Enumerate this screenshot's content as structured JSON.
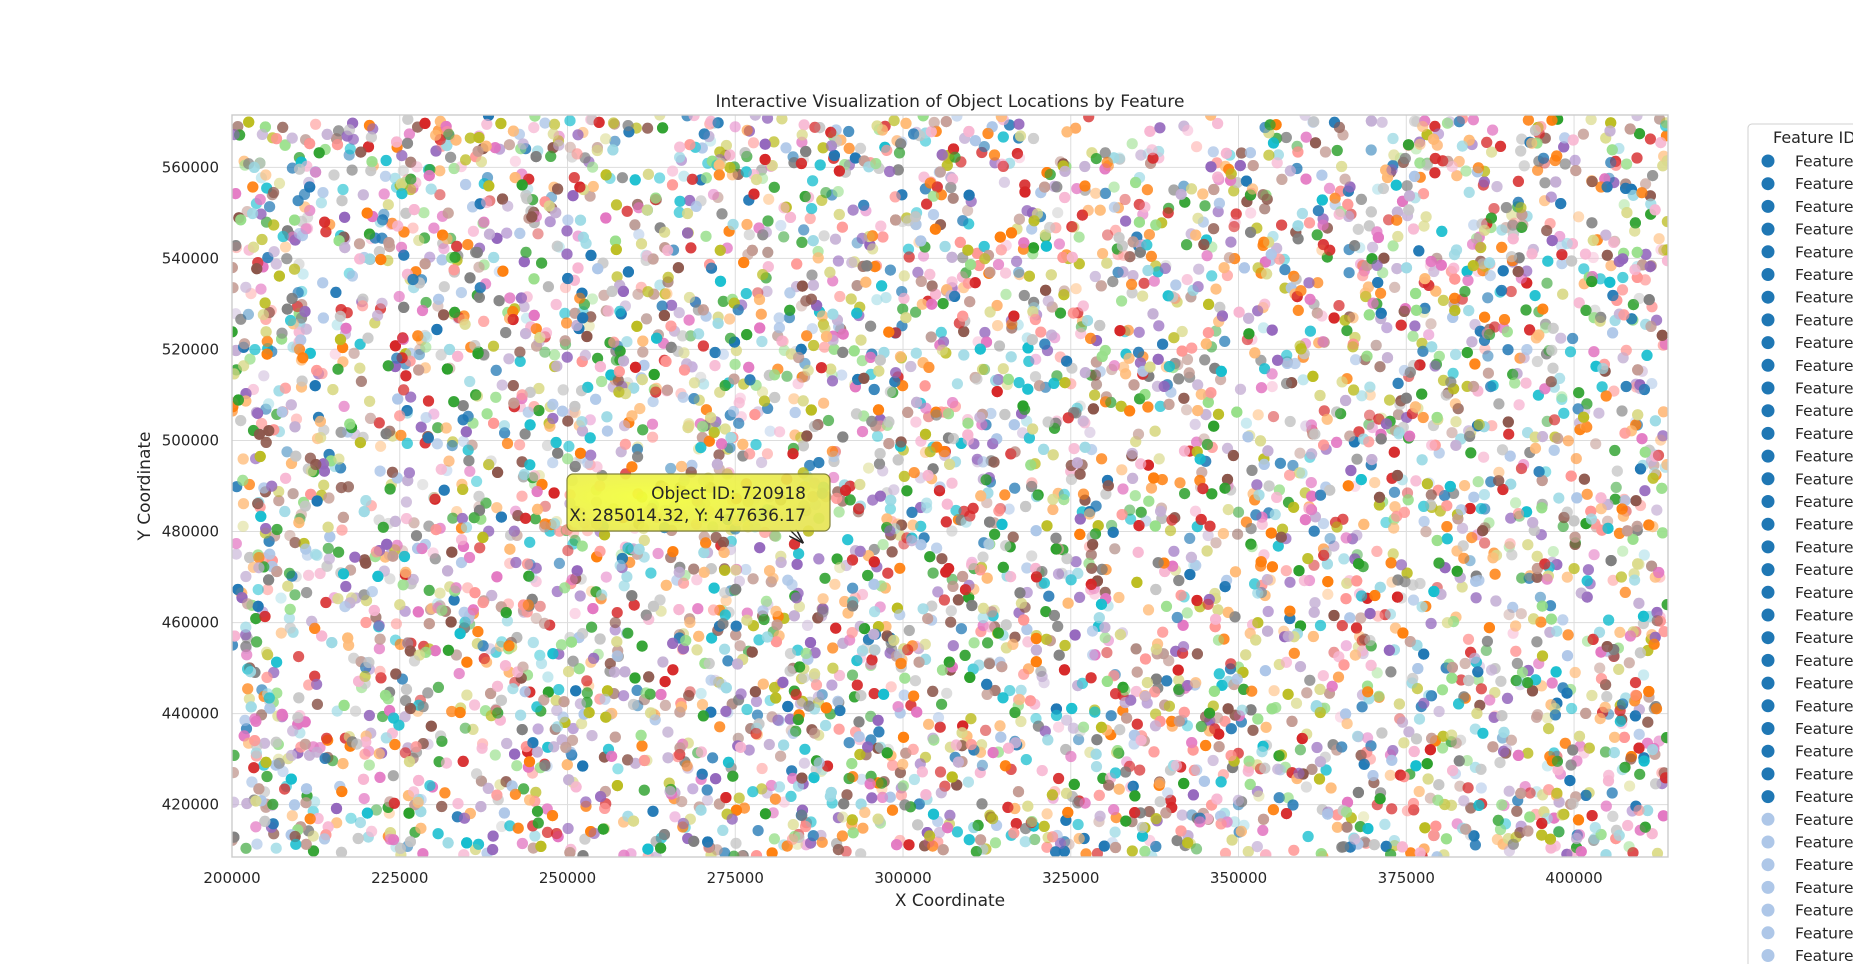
{
  "chart_data": {
    "type": "scatter",
    "title": "Interactive Visualization of Object Locations by Feature",
    "xlabel": "X Coordinate",
    "ylabel": "Y Coordinate",
    "xlim": [
      200000,
      414000
    ],
    "ylim": [
      408500,
      571500
    ],
    "x_ticks": [
      200000,
      225000,
      250000,
      275000,
      300000,
      325000,
      350000,
      375000,
      400000
    ],
    "y_ticks": [
      420000,
      440000,
      460000,
      480000,
      500000,
      520000,
      540000,
      560000
    ],
    "grid": true,
    "point_count_estimate": 9000,
    "palette": [
      "#1f77b4",
      "#aec7e8",
      "#ff7f0e",
      "#ffbb78",
      "#2ca02c",
      "#98df8a",
      "#d62728",
      "#ff9896",
      "#9467bd",
      "#c5b0d5",
      "#8c564b",
      "#c49c94",
      "#e377c2",
      "#f7b6d2",
      "#7f7f7f",
      "#c7c7c7",
      "#bcbd22",
      "#dbdb8d",
      "#17becf",
      "#9edae5"
    ],
    "annotation": {
      "line1": "Object ID: 720918",
      "line2": "X: 285014.32, Y: 477636.17",
      "x": 285014.32,
      "y": 477636.17,
      "box_color": "#f5f04a"
    },
    "legend": {
      "title": "Feature ID",
      "placement": "outside-right",
      "entry_label": "Feature",
      "entries_dark": 29,
      "entries_light": 7,
      "dark_color": "#1f77b4",
      "light_color": "#aec7e8"
    }
  }
}
